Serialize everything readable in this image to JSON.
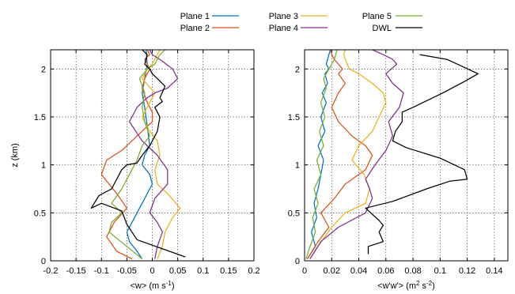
{
  "legend": [
    {
      "name": "Plane 1",
      "color": "#0072BD"
    },
    {
      "name": "Plane 2",
      "color": "#D95319"
    },
    {
      "name": "Plane 3",
      "color": "#EDB120"
    },
    {
      "name": "Plane 4",
      "color": "#7E2F8E"
    },
    {
      "name": "Plane 5",
      "color": "#77AC30"
    },
    {
      "name": "DWL",
      "color": "#000000"
    }
  ],
  "chart_data": [
    {
      "type": "line",
      "xlabel_parts": [
        "<w> (m s",
        "-1",
        ")"
      ],
      "ylabel": "z (km)",
      "xlim": [
        -0.2,
        0.2
      ],
      "ylim": [
        0,
        2.2
      ],
      "xticks": [
        "-0.2",
        "-0.15",
        "-0.1",
        "-0.05",
        "0",
        "0.05",
        "0.1",
        "0.15",
        "0.2"
      ],
      "yticks": [
        "0",
        "0.5",
        "1",
        "1.5",
        "2"
      ],
      "grid": true,
      "series": [
        {
          "name": "Plane 1",
          "x": [
            -0.02,
            -0.03,
            -0.045,
            -0.05,
            -0.04,
            -0.03,
            -0.02,
            -0.01,
            0.0,
            -0.005,
            -0.02,
            -0.015,
            -0.005,
            -0.01,
            -0.015,
            -0.02,
            -0.015,
            -0.01,
            -0.012
          ],
          "y": [
            0.02,
            0.1,
            0.2,
            0.3,
            0.4,
            0.5,
            0.6,
            0.7,
            0.8,
            0.9,
            1.0,
            1.1,
            1.2,
            1.4,
            1.6,
            1.75,
            1.9,
            2.05,
            2.2
          ]
        },
        {
          "name": "Plane 2",
          "x": [
            -0.04,
            -0.07,
            -0.09,
            -0.075,
            -0.05,
            -0.07,
            -0.1,
            -0.09,
            -0.06,
            -0.03,
            -0.0,
            0.0,
            -0.01,
            -0.02,
            -0.015,
            -0.005,
            -0.015,
            -0.005,
            -0.01
          ],
          "y": [
            0.02,
            0.1,
            0.25,
            0.4,
            0.55,
            0.7,
            0.9,
            1.05,
            1.15,
            1.3,
            1.45,
            1.55,
            1.65,
            1.8,
            1.9,
            2.0,
            2.1,
            2.15,
            2.2
          ]
        },
        {
          "name": "Plane 3",
          "x": [
            0.01,
            0.02,
            0.025,
            0.04,
            0.055,
            0.03,
            0.01,
            0.005,
            0.015,
            0.01,
            -0.005,
            -0.02,
            -0.01,
            0.005,
            -0.02,
            -0.01,
            0.0,
            0.01,
            0.015
          ],
          "y": [
            0.02,
            0.15,
            0.3,
            0.45,
            0.55,
            0.7,
            0.8,
            0.95,
            1.1,
            1.25,
            1.35,
            1.5,
            1.6,
            1.75,
            1.9,
            2.0,
            2.05,
            2.15,
            2.2
          ]
        },
        {
          "name": "Plane 4",
          "x": [
            0.005,
            0.01,
            0.02,
            0.01,
            -0.005,
            0.005,
            0.03,
            0.03,
            0.01,
            -0.02,
            -0.045,
            -0.03,
            -0.01,
            0.005,
            0.03,
            0.05,
            0.04,
            0.015,
            0.0,
            -0.005
          ],
          "y": [
            0.02,
            0.15,
            0.3,
            0.4,
            0.5,
            0.65,
            0.8,
            0.95,
            1.1,
            1.25,
            1.45,
            1.6,
            1.7,
            1.75,
            1.8,
            1.9,
            2.0,
            2.1,
            2.15,
            2.2
          ]
        },
        {
          "name": "Plane 5",
          "x": [
            -0.02,
            -0.05,
            -0.085,
            -0.08,
            -0.06,
            -0.08,
            -0.06,
            -0.04,
            -0.03,
            -0.02,
            -0.005,
            -0.015,
            -0.02,
            -0.015,
            -0.025,
            -0.01,
            0.005,
            0.015,
            0.025
          ],
          "y": [
            0.02,
            0.15,
            0.3,
            0.4,
            0.5,
            0.6,
            0.75,
            0.95,
            1.05,
            1.2,
            1.3,
            1.45,
            1.6,
            1.75,
            1.9,
            2.0,
            2.05,
            2.15,
            2.2
          ]
        },
        {
          "name": "DWL",
          "x": [
            0.065,
            -0.03,
            -0.05,
            -0.06,
            -0.1,
            -0.12,
            -0.105,
            -0.08,
            -0.06,
            -0.05,
            -0.03,
            -0.02,
            -0.005,
            0.01,
            0.015,
            0.005,
            0.02,
            0.015,
            0.025,
            0.01,
            0.0,
            -0.005,
            -0.015,
            -0.01,
            -0.02
          ],
          "y": [
            0.04,
            0.22,
            0.38,
            0.52,
            0.6,
            0.55,
            0.68,
            0.75,
            0.95,
            1.0,
            1.02,
            1.1,
            1.2,
            1.35,
            1.5,
            1.6,
            1.66,
            1.7,
            1.82,
            1.9,
            1.95,
            2.0,
            2.05,
            2.15,
            2.2
          ]
        }
      ]
    },
    {
      "type": "line",
      "xlabel_parts": [
        "<w'w'> (m",
        "2",
        " s",
        "-2",
        ")"
      ],
      "ylabel": "",
      "xlim": [
        0,
        0.15
      ],
      "ylim": [
        0,
        2.2
      ],
      "xticks": [
        "0",
        "0.02",
        "0.04",
        "0.06",
        "0.08",
        "0.1",
        "0.12",
        "0.14"
      ],
      "yticks": [
        "0",
        "0.5",
        "1",
        "1.5",
        "2"
      ],
      "grid": true,
      "series": [
        {
          "name": "Plane 1",
          "x": [
            0.002,
            0.008,
            0.005,
            0.009,
            0.007,
            0.01,
            0.012,
            0.014,
            0.01,
            0.015,
            0.012,
            0.016,
            0.013,
            0.017,
            0.015,
            0.018,
            0.016,
            0.018,
            0.019
          ],
          "y": [
            0.02,
            0.15,
            0.3,
            0.45,
            0.6,
            0.75,
            0.9,
            1.05,
            1.2,
            1.35,
            1.5,
            1.65,
            1.75,
            1.85,
            1.95,
            2.0,
            2.05,
            2.15,
            2.2
          ]
        },
        {
          "name": "Plane 2",
          "x": [
            0.002,
            0.01,
            0.018,
            0.012,
            0.022,
            0.03,
            0.045,
            0.05,
            0.045,
            0.035,
            0.025,
            0.02,
            0.025,
            0.03,
            0.025,
            0.028,
            0.022,
            0.02,
            0.019
          ],
          "y": [
            0.02,
            0.2,
            0.35,
            0.5,
            0.65,
            0.8,
            0.95,
            1.1,
            1.2,
            1.3,
            1.45,
            1.6,
            1.75,
            1.85,
            1.95,
            2.0,
            2.1,
            2.15,
            2.2
          ]
        },
        {
          "name": "Plane 3",
          "x": [
            0.004,
            0.01,
            0.02,
            0.03,
            0.045,
            0.048,
            0.044,
            0.035,
            0.04,
            0.05,
            0.055,
            0.06,
            0.058,
            0.05,
            0.04,
            0.033,
            0.03,
            0.029,
            0.03
          ],
          "y": [
            0.02,
            0.15,
            0.35,
            0.5,
            0.6,
            0.75,
            0.9,
            1.05,
            1.2,
            1.35,
            1.5,
            1.65,
            1.75,
            1.85,
            1.95,
            2.0,
            2.1,
            2.15,
            2.2
          ]
        },
        {
          "name": "Plane 4",
          "x": [
            0.004,
            0.012,
            0.025,
            0.045,
            0.05,
            0.048,
            0.045,
            0.052,
            0.06,
            0.065,
            0.062,
            0.07,
            0.073,
            0.065,
            0.06,
            0.068,
            0.065,
            0.058,
            0.05
          ],
          "y": [
            0.02,
            0.2,
            0.35,
            0.5,
            0.65,
            0.75,
            0.85,
            1.0,
            1.15,
            1.3,
            1.45,
            1.6,
            1.75,
            1.85,
            1.95,
            2.05,
            2.1,
            2.15,
            2.2
          ]
        },
        {
          "name": "Plane 5",
          "x": [
            0.001,
            0.004,
            0.008,
            0.006,
            0.01,
            0.007,
            0.012,
            0.009,
            0.014,
            0.011,
            0.015,
            0.012,
            0.016,
            0.014,
            0.018,
            0.02,
            0.022,
            0.023,
            0.024
          ],
          "y": [
            0.02,
            0.15,
            0.3,
            0.45,
            0.6,
            0.75,
            0.9,
            1.05,
            1.2,
            1.35,
            1.5,
            1.65,
            1.8,
            1.9,
            2.0,
            2.05,
            2.1,
            2.15,
            2.2
          ]
        },
        {
          "name": "DWL",
          "x": [
            0.047,
            0.047,
            0.058,
            0.055,
            0.058,
            0.055,
            0.045,
            0.065,
            0.09,
            0.107,
            0.12,
            0.118,
            0.1,
            0.075,
            0.065,
            0.067,
            0.072,
            0.072,
            0.08,
            0.102,
            0.118,
            0.128,
            0.105,
            0.085
          ],
          "y": [
            0.07,
            0.15,
            0.2,
            0.3,
            0.37,
            0.42,
            0.55,
            0.62,
            0.75,
            0.83,
            0.85,
            0.95,
            1.07,
            1.18,
            1.25,
            1.35,
            1.45,
            1.55,
            1.6,
            1.75,
            1.87,
            1.95,
            2.1,
            2.15
          ]
        }
      ]
    }
  ]
}
